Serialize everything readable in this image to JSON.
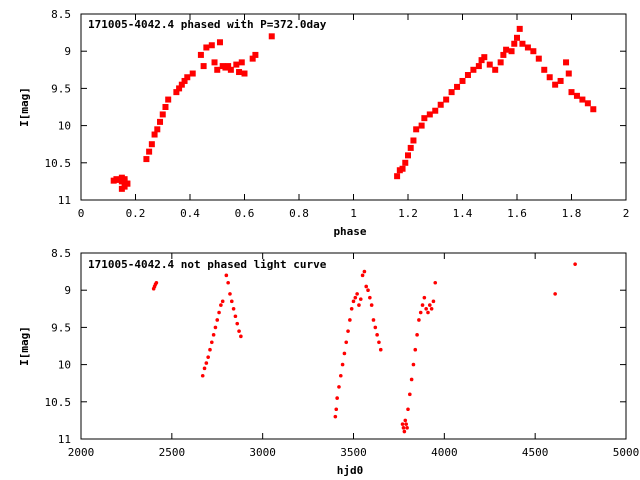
{
  "chart_data": [
    {
      "type": "scatter",
      "title": "171005-4042.4 phased with P=372.0day",
      "xlabel": "phase",
      "ylabel": "I[mag]",
      "xlim": [
        0,
        2
      ],
      "ylim": [
        11,
        8.5
      ],
      "y_inverted": true,
      "xticks": [
        "0",
        "0.2",
        "0.4",
        "0.6",
        "0.8",
        "1",
        "1.2",
        "1.4",
        "1.6",
        "1.8",
        "2"
      ],
      "yticks": [
        "8.5",
        "9",
        "9.5",
        "10",
        "10.5",
        "11"
      ],
      "grid": false,
      "marker_color": "#ff0000",
      "marker": "filled-square",
      "series": [
        {
          "x": [
            0.12,
            0.13,
            0.14,
            0.15,
            0.16,
            0.17,
            0.15,
            0.16,
            0.24,
            0.25,
            0.26,
            0.27,
            0.28,
            0.29,
            0.3,
            0.31,
            0.32,
            0.35,
            0.36,
            0.37,
            0.38,
            0.39,
            0.41,
            0.44,
            0.45,
            0.46,
            0.48,
            0.49,
            0.5,
            0.51,
            0.52,
            0.53,
            0.54,
            0.55,
            0.57,
            0.58,
            0.59,
            0.6,
            0.63,
            0.64,
            0.7,
            0.15,
            0.16,
            0.17,
            1.16,
            1.17,
            1.18,
            1.19,
            1.2,
            1.21,
            1.22,
            1.23,
            1.25,
            1.26,
            1.28,
            1.3,
            1.32,
            1.34,
            1.36,
            1.38,
            1.4,
            1.42,
            1.44,
            1.46,
            1.47,
            1.48,
            1.5,
            1.52,
            1.54,
            1.55,
            1.56,
            1.58,
            1.59,
            1.6,
            1.61,
            1.62,
            1.64,
            1.66,
            1.68,
            1.7,
            1.72,
            1.74,
            1.76,
            1.78,
            1.79,
            1.8,
            1.82,
            1.84,
            1.86,
            1.88
          ],
          "y": [
            10.74,
            10.72,
            10.73,
            10.75,
            10.72,
            10.78,
            10.85,
            10.82,
            10.45,
            10.35,
            10.25,
            10.12,
            10.05,
            9.95,
            9.85,
            9.75,
            9.65,
            9.55,
            9.5,
            9.45,
            9.4,
            9.35,
            9.3,
            9.05,
            9.2,
            8.95,
            8.92,
            9.15,
            9.25,
            8.88,
            9.2,
            9.22,
            9.2,
            9.25,
            9.18,
            9.28,
            9.15,
            9.3,
            9.1,
            9.05,
            8.8,
            10.7,
            10.75,
            10.78,
            10.68,
            10.6,
            10.58,
            10.5,
            10.4,
            10.3,
            10.2,
            10.05,
            10.0,
            9.9,
            9.85,
            9.8,
            9.72,
            9.65,
            9.55,
            9.48,
            9.4,
            9.32,
            9.25,
            9.2,
            9.12,
            9.08,
            9.18,
            9.25,
            9.15,
            9.05,
            8.98,
            9.0,
            8.9,
            8.82,
            8.7,
            8.9,
            8.95,
            9.0,
            9.1,
            9.25,
            9.35,
            9.45,
            9.4,
            9.15,
            9.3,
            9.55,
            9.6,
            9.65,
            9.7,
            9.78
          ]
        }
      ]
    },
    {
      "type": "scatter",
      "title": "171005-4042.4 not phased light curve",
      "xlabel": "hjd0",
      "ylabel": "I[mag]",
      "xlim": [
        2000,
        5000
      ],
      "ylim": [
        11,
        8.5
      ],
      "y_inverted": true,
      "xticks": [
        "2000",
        "2500",
        "3000",
        "3500",
        "4000",
        "4500",
        "5000"
      ],
      "yticks": [
        "8.5",
        "9",
        "9.5",
        "10",
        "10.5",
        "11"
      ],
      "grid": false,
      "marker_color": "#ff0000",
      "marker": "filled-circle",
      "series": [
        {
          "x": [
            2400,
            2405,
            2410,
            2415,
            2670,
            2680,
            2690,
            2700,
            2710,
            2720,
            2730,
            2740,
            2750,
            2760,
            2770,
            2780,
            2800,
            2810,
            2820,
            2830,
            2840,
            2850,
            2860,
            2870,
            2880,
            3400,
            3405,
            3410,
            3420,
            3430,
            3440,
            3450,
            3460,
            3470,
            3480,
            3490,
            3500,
            3510,
            3520,
            3530,
            3540,
            3550,
            3560,
            3570,
            3580,
            3590,
            3600,
            3610,
            3620,
            3630,
            3640,
            3650,
            3770,
            3775,
            3780,
            3785,
            3790,
            3795,
            3800,
            3810,
            3820,
            3830,
            3840,
            3850,
            3860,
            3870,
            3880,
            3890,
            3900,
            3910,
            3920,
            3930,
            3940,
            3950,
            4610,
            4720
          ],
          "y": [
            8.98,
            8.95,
            8.92,
            8.9,
            10.15,
            10.05,
            9.98,
            9.9,
            9.8,
            9.7,
            9.6,
            9.5,
            9.4,
            9.3,
            9.2,
            9.15,
            8.8,
            8.9,
            9.05,
            9.15,
            9.25,
            9.35,
            9.45,
            9.55,
            9.62,
            10.7,
            10.6,
            10.45,
            10.3,
            10.15,
            10.0,
            9.85,
            9.7,
            9.55,
            9.4,
            9.25,
            9.15,
            9.1,
            9.05,
            9.2,
            9.12,
            8.8,
            8.75,
            8.95,
            9.0,
            9.1,
            9.2,
            9.4,
            9.5,
            9.6,
            9.7,
            9.8,
            10.8,
            10.85,
            10.9,
            10.75,
            10.8,
            10.85,
            10.6,
            10.4,
            10.2,
            10.0,
            9.8,
            9.6,
            9.4,
            9.3,
            9.2,
            9.1,
            9.25,
            9.3,
            9.2,
            9.25,
            9.15,
            8.9,
            9.05,
            8.65
          ]
        }
      ]
    }
  ]
}
